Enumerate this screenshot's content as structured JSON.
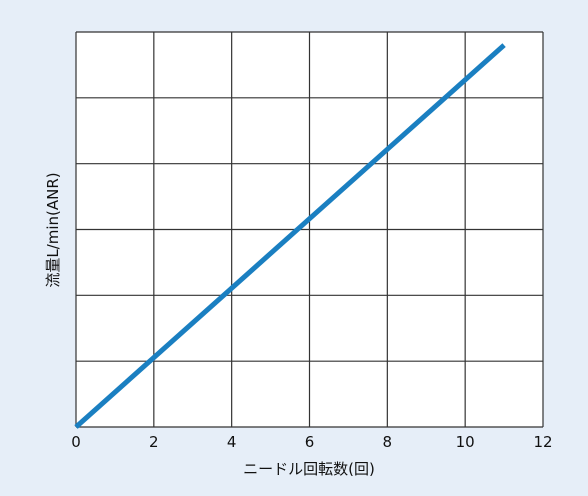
{
  "chart_data": {
    "type": "line",
    "title": "",
    "xlabel": "ニードル回転数(回)",
    "ylabel": "流量L/min(ANR)",
    "xlim": [
      0,
      12
    ],
    "ylim": [
      0,
      6
    ],
    "x_ticks": [
      "0",
      "2",
      "4",
      "6",
      "8",
      "10",
      "12"
    ],
    "y_ticks_labeled": false,
    "grid": true,
    "legend": "none",
    "series": [
      {
        "x": [
          0,
          11
        ],
        "y": [
          0,
          5.8
        ],
        "color": "#1a7fc1"
      }
    ]
  },
  "colors": {
    "background": "#e6eef8",
    "plot_area": "#ffffff",
    "grid": "#333333",
    "line": "#1a7fc1"
  }
}
